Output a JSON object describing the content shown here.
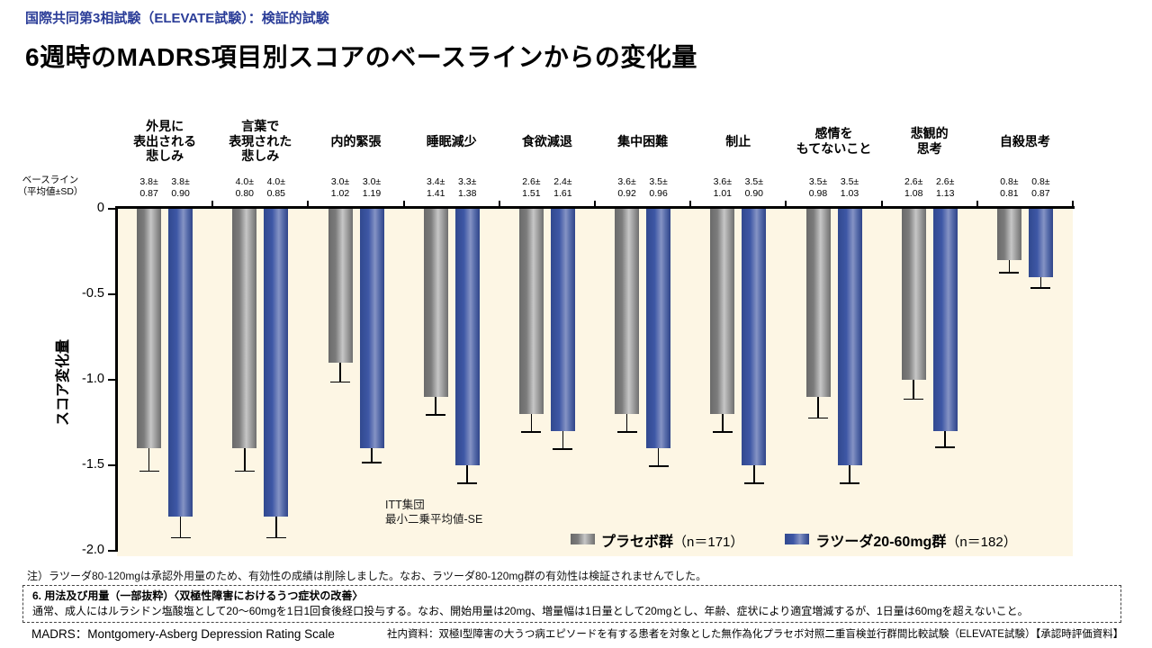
{
  "slide": {
    "kicker": "国際共同第3相試験（ELEVATE試験）：検証的試験",
    "title": "6週時のMADRS項目別スコアのベースラインからの変化量"
  },
  "chart_data": {
    "type": "bar",
    "title": "6週時のMADRS項目別スコアのベースラインからの変化量",
    "ylabel": "スコア変化量",
    "ylim": [
      -2.0,
      0
    ],
    "ytick_values": [
      0,
      -0.5,
      -1.0,
      -1.5,
      -2.0
    ],
    "ytick_labels": [
      "0",
      "-0.5",
      "-1.0",
      "-1.5",
      "-2.0"
    ],
    "grid": false,
    "plot_background": "#FDF6E4",
    "legend_position": "inside-bottom-right",
    "baseline_header": "ベースライン\n（平均値±SD）",
    "categories": [
      "外見に\n表出される\n悲しみ",
      "言葉で\n表現された\n悲しみ",
      "内的緊張",
      "睡眠減少",
      "食欲減退",
      "集中困難",
      "制止",
      "感情を\nもてないこと",
      "悲観的\n思考",
      "自殺思考"
    ],
    "baseline_values": [
      [
        "3.8±\n0.87",
        "3.8±\n0.90"
      ],
      [
        "4.0±\n0.80",
        "4.0±\n0.85"
      ],
      [
        "3.0±\n1.02",
        "3.0±\n1.19"
      ],
      [
        "3.4±\n1.41",
        "3.3±\n1.38"
      ],
      [
        "2.6±\n1.51",
        "2.4±\n1.61"
      ],
      [
        "3.6±\n0.92",
        "3.5±\n0.96"
      ],
      [
        "3.6±\n1.01",
        "3.5±\n0.90"
      ],
      [
        "3.5±\n0.98",
        "3.5±\n1.03"
      ],
      [
        "2.6±\n1.08",
        "2.6±\n1.13"
      ],
      [
        "0.8±\n0.81",
        "0.8±\n0.87"
      ]
    ],
    "series": [
      {
        "name": "プラセボ群",
        "n_label": "（n＝171）",
        "color": "#8F8F8F",
        "values": [
          -1.4,
          -1.4,
          -0.9,
          -1.1,
          -1.2,
          -1.2,
          -1.2,
          -1.1,
          -1.0,
          -0.3
        ],
        "se": [
          0.13,
          0.13,
          0.11,
          0.1,
          0.1,
          0.1,
          0.1,
          0.12,
          0.11,
          0.07
        ]
      },
      {
        "name": "ラツーダ20-60mg群",
        "n_label": "（n＝182）",
        "color": "#3E57A5",
        "values": [
          -1.8,
          -1.8,
          -1.4,
          -1.5,
          -1.3,
          -1.4,
          -1.5,
          -1.5,
          -1.3,
          -0.4
        ],
        "se": [
          0.12,
          0.12,
          0.08,
          0.1,
          0.1,
          0.1,
          0.1,
          0.1,
          0.09,
          0.06
        ]
      }
    ],
    "annotation": "ITT集団\n最小二乗平均値-SE"
  },
  "footnotes": {
    "note": "注）ラツーダ80-120mgは承認外用量のため、有効性の成績は削除しました。なお、ラツーダ80-120mg群の有効性は検証されませんでした。",
    "dosage_box": {
      "heading": "6. 用法及び用量（一部抜粋）〈双極性障害におけるうつ症状の改善〉",
      "body": "通常、成人にはルラシドン塩酸塩として20～60mgを1日1回食後経口投与する。なお、開始用量は20mg、増量幅は1日量として20mgとし、年齢、症状により適宜増減するが、1日量は60mgを超えないこと。"
    },
    "abbreviation": "MADRS：Montgomery-Asberg Depression Rating Scale",
    "source": "社内資料：双極Ⅰ型障害の大うつ病エピソードを有する患者を対象とした無作為化プラセボ対照二重盲検並行群間比較試験（ELEVATE試験）【承認時評価資料】"
  }
}
